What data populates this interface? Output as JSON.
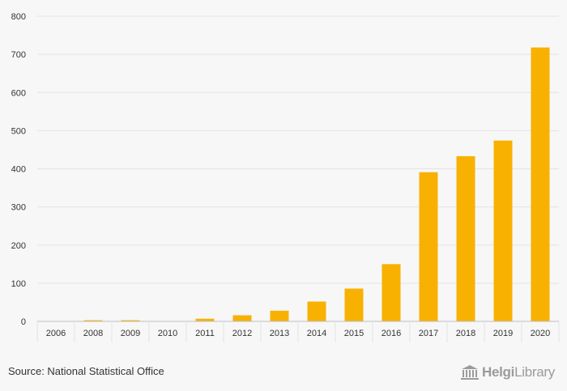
{
  "chart_data": {
    "type": "bar",
    "title": "",
    "xlabel": "",
    "ylabel": "",
    "categories": [
      "2006",
      "2008",
      "2009",
      "2010",
      "2011",
      "2012",
      "2013",
      "2014",
      "2015",
      "2016",
      "2017",
      "2018",
      "2019",
      "2020"
    ],
    "values": [
      0,
      3,
      3,
      0,
      7,
      16,
      28,
      52,
      86,
      150,
      391,
      433,
      474,
      718
    ],
    "ylim": [
      0,
      800
    ],
    "yticks": [
      "0",
      "100",
      "200",
      "300",
      "400",
      "500",
      "600",
      "700",
      "800"
    ],
    "grid": true,
    "colors": {
      "bar": "#f8b100",
      "grid": "#e3e3e3",
      "axis": "#bfbfbf",
      "text": "#333333"
    }
  },
  "footer": {
    "source": "Source: National Statistical Office",
    "logo": {
      "text_bold": "Helgi",
      "text_regular": "Library",
      "icon": "library-columns-icon"
    }
  }
}
